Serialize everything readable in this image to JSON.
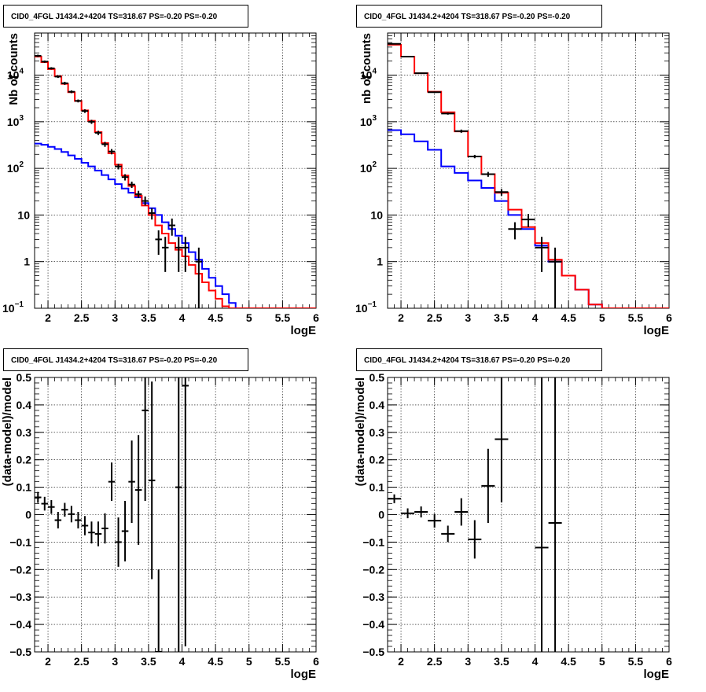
{
  "colors": {
    "data": "#000000",
    "total_model": "#ff0000",
    "background_model": "#0000ff",
    "grid": "#000000"
  },
  "chart_data": [
    {
      "panel": "top-left",
      "type": "line",
      "title": "CID0_4FGL J1434.2+4204 TS=318.67 PS=-0.20 PS=-0.20",
      "xlabel": "logE",
      "ylabel": "Nb of counts",
      "log_y": true,
      "grid": true,
      "xlim": [
        1.8,
        6.0
      ],
      "ylim": [
        0.1,
        80000
      ],
      "x_ticks": [
        "2",
        "2.5",
        "3",
        "3.5",
        "4",
        "4.5",
        "5",
        "5.5",
        "6"
      ],
      "y_ticks": [
        {
          "base": "10",
          "exp": "−1",
          "v": 0.1
        },
        {
          "base": "1",
          "exp": "",
          "v": 1
        },
        {
          "base": "10",
          "exp": "",
          "v": 10
        },
        {
          "base": "10",
          "exp": "2",
          "v": 100
        },
        {
          "base": "10",
          "exp": "3",
          "v": 1000
        },
        {
          "base": "10",
          "exp": "4",
          "v": 10000
        }
      ],
      "bin_edges": [
        1.8,
        1.9,
        2.0,
        2.1,
        2.2,
        2.3,
        2.4,
        2.5,
        2.6,
        2.7,
        2.8,
        2.9,
        3.0,
        3.1,
        3.2,
        3.3,
        3.4,
        3.5,
        3.6,
        3.7,
        3.8,
        3.9,
        4.0,
        4.1,
        4.2,
        4.3,
        4.4,
        4.5,
        4.6,
        4.7,
        4.8,
        4.9,
        5.0,
        5.1,
        5.2,
        5.3,
        5.4,
        5.5,
        5.6,
        5.7,
        5.8,
        5.9,
        6.0
      ],
      "series": [
        {
          "role": "total_model",
          "values": [
            25000,
            19000,
            13500,
            9500,
            6500,
            4300,
            2800,
            1750,
            1050,
            600,
            350,
            210,
            120,
            70,
            42,
            26,
            16,
            10,
            6,
            4,
            2.5,
            1.8,
            1.3,
            0.85,
            0.55,
            0.36,
            0.24,
            0.16,
            0.11,
            0.1,
            0.1,
            0.1,
            0.1,
            0.1,
            0.1,
            0.1,
            0.1,
            0.1,
            0.1,
            0.1,
            0.1,
            0.1
          ]
        },
        {
          "role": "background_model",
          "values": [
            340,
            320,
            290,
            260,
            225,
            190,
            160,
            132,
            110,
            90,
            72,
            58,
            46,
            37,
            30,
            24,
            18,
            14,
            10,
            7,
            5,
            3.6,
            2.5,
            1.6,
            1.1,
            0.7,
            0.45,
            0.3,
            0.2,
            0.13,
            0.1,
            0.1,
            0.1,
            0.1,
            0.1,
            0.1,
            0.1,
            0.1,
            0.1,
            0.1,
            0.1,
            0.1
          ]
        },
        {
          "role": "data",
          "points": [
            {
              "x": 1.85,
              "y": 26000,
              "lo": 24500,
              "hi": 27500
            },
            {
              "x": 1.95,
              "y": 19500,
              "lo": 18400,
              "hi": 20600
            },
            {
              "x": 2.05,
              "y": 14000,
              "lo": 13200,
              "hi": 14800
            },
            {
              "x": 2.15,
              "y": 9300,
              "lo": 8700,
              "hi": 9900
            },
            {
              "x": 2.25,
              "y": 6700,
              "lo": 6200,
              "hi": 7200
            },
            {
              "x": 2.35,
              "y": 4400,
              "lo": 4100,
              "hi": 4700
            },
            {
              "x": 2.45,
              "y": 2800,
              "lo": 2600,
              "hi": 3000
            },
            {
              "x": 2.55,
              "y": 1700,
              "lo": 1550,
              "hi": 1850
            },
            {
              "x": 2.65,
              "y": 1000,
              "lo": 900,
              "hi": 1100
            },
            {
              "x": 2.75,
              "y": 580,
              "lo": 520,
              "hi": 640
            },
            {
              "x": 2.85,
              "y": 330,
              "lo": 290,
              "hi": 370
            },
            {
              "x": 2.95,
              "y": 230,
              "lo": 200,
              "hi": 260
            },
            {
              "x": 3.05,
              "y": 110,
              "lo": 95,
              "hi": 125
            },
            {
              "x": 3.15,
              "y": 65,
              "lo": 55,
              "hi": 75
            },
            {
              "x": 3.25,
              "y": 45,
              "lo": 38,
              "hi": 52
            },
            {
              "x": 3.35,
              "y": 28,
              "lo": 23,
              "hi": 33
            },
            {
              "x": 3.45,
              "y": 20,
              "lo": 16,
              "hi": 25
            },
            {
              "x": 3.55,
              "y": 11,
              "lo": 8,
              "hi": 14
            },
            {
              "x": 3.65,
              "y": 3,
              "lo": 1.4,
              "hi": 4.7
            },
            {
              "x": 3.75,
              "y": 2,
              "lo": 0.6,
              "hi": 3.4
            },
            {
              "x": 3.85,
              "y": 6,
              "lo": 3.6,
              "hi": 8.4
            },
            {
              "x": 3.95,
              "y": 2,
              "lo": 0.6,
              "hi": 3.4
            },
            {
              "x": 4.05,
              "y": 2,
              "lo": 0.6,
              "hi": 3.4
            },
            {
              "x": 4.25,
              "y": 1,
              "lo": 0.1,
              "hi": 2
            }
          ]
        }
      ]
    },
    {
      "panel": "top-right",
      "type": "line",
      "title": "CID0_4FGL J1434.2+4204 TS=318.67 PS=-0.20 PS=-0.20",
      "xlabel": "logE",
      "ylabel": "nb of counts",
      "log_y": true,
      "grid": true,
      "xlim": [
        1.8,
        6.0
      ],
      "ylim": [
        0.1,
        80000
      ],
      "x_ticks": [
        "2",
        "2.5",
        "3",
        "3.5",
        "4",
        "4.5",
        "5",
        "5.5",
        "6"
      ],
      "y_ticks": [
        {
          "base": "10",
          "exp": "−1",
          "v": 0.1
        },
        {
          "base": "1",
          "exp": "",
          "v": 1
        },
        {
          "base": "10",
          "exp": "",
          "v": 10
        },
        {
          "base": "10",
          "exp": "2",
          "v": 100
        },
        {
          "base": "10",
          "exp": "3",
          "v": 1000
        },
        {
          "base": "10",
          "exp": "4",
          "v": 10000
        }
      ],
      "bin_edges": [
        1.8,
        2.0,
        2.2,
        2.4,
        2.6,
        2.8,
        3.0,
        3.2,
        3.4,
        3.6,
        3.8,
        4.0,
        4.2,
        4.4,
        4.6,
        4.8,
        5.0,
        5.2,
        5.4,
        5.6,
        5.8,
        6.0
      ],
      "series": [
        {
          "role": "total_model",
          "values": [
            45000,
            25000,
            11000,
            4400,
            1600,
            620,
            180,
            75,
            30,
            13,
            5.5,
            2.5,
            1.1,
            0.5,
            0.25,
            0.12,
            0.1,
            0.1,
            0.1,
            0.1,
            0.1
          ]
        },
        {
          "role": "background_model",
          "values": [
            660,
            540,
            380,
            250,
            110,
            80,
            55,
            38,
            20,
            10,
            5,
            2.2,
            1.0,
            0.5,
            0.25,
            0.12,
            0.1,
            0.1,
            0.1,
            0.1,
            0.1
          ]
        },
        {
          "role": "data",
          "points": [
            {
              "x": 1.9,
              "y": 47000,
              "lo": 46000,
              "hi": 48000
            },
            {
              "x": 2.1,
              "y": 25000,
              "lo": 24600,
              "hi": 25400
            },
            {
              "x": 2.3,
              "y": 11000,
              "lo": 10700,
              "hi": 11300
            },
            {
              "x": 2.5,
              "y": 4300,
              "lo": 4150,
              "hi": 4450
            },
            {
              "x": 2.7,
              "y": 1500,
              "lo": 1420,
              "hi": 1580
            },
            {
              "x": 2.9,
              "y": 630,
              "lo": 580,
              "hi": 680
            },
            {
              "x": 3.1,
              "y": 180,
              "lo": 165,
              "hi": 195
            },
            {
              "x": 3.3,
              "y": 75,
              "lo": 66,
              "hi": 84
            },
            {
              "x": 3.5,
              "y": 31,
              "lo": 26,
              "hi": 36
            },
            {
              "x": 3.7,
              "y": 5,
              "lo": 3,
              "hi": 7
            },
            {
              "x": 3.9,
              "y": 8,
              "lo": 5.5,
              "hi": 10.5
            },
            {
              "x": 4.1,
              "y": 2,
              "lo": 0.6,
              "hi": 3.4
            },
            {
              "x": 4.3,
              "y": 1,
              "lo": 0.1,
              "hi": 2
            }
          ]
        }
      ]
    },
    {
      "panel": "bottom-left",
      "type": "scatter",
      "title": "CID0_4FGL J1434.2+4204 TS=318.67 PS=-0.20 PS=-0.20",
      "xlabel": "logE",
      "ylabel": "(data-model)/model",
      "log_y": false,
      "grid": true,
      "xlim": [
        1.8,
        6.0
      ],
      "ylim": [
        -0.5,
        0.5
      ],
      "x_ticks": [
        "2",
        "2.5",
        "3",
        "3.5",
        "4",
        "4.5",
        "5",
        "5.5",
        "6"
      ],
      "y_ticks": [
        "−0.5",
        "−0.4",
        "−0.3",
        "−0.2",
        "−0.1",
        "0",
        "0.1",
        "0.2",
        "0.3",
        "0.4",
        "0.5"
      ],
      "half_width": 0.05,
      "points": [
        {
          "x": 1.85,
          "y": 0.063,
          "err": 0.02
        },
        {
          "x": 1.95,
          "y": 0.04,
          "err": 0.025
        },
        {
          "x": 2.05,
          "y": 0.028,
          "err": 0.025
        },
        {
          "x": 2.15,
          "y": -0.02,
          "err": 0.03
        },
        {
          "x": 2.25,
          "y": 0.018,
          "err": 0.025
        },
        {
          "x": 2.35,
          "y": 0.002,
          "err": 0.03
        },
        {
          "x": 2.45,
          "y": -0.02,
          "err": 0.03
        },
        {
          "x": 2.55,
          "y": -0.04,
          "err": 0.035
        },
        {
          "x": 2.65,
          "y": -0.065,
          "err": 0.04
        },
        {
          "x": 2.75,
          "y": -0.07,
          "err": 0.045
        },
        {
          "x": 2.85,
          "y": -0.05,
          "err": 0.055
        },
        {
          "x": 2.95,
          "y": 0.12,
          "err": 0.07
        },
        {
          "x": 3.05,
          "y": -0.1,
          "err": 0.09
        },
        {
          "x": 3.15,
          "y": -0.06,
          "err": 0.11
        },
        {
          "x": 3.25,
          "y": 0.12,
          "err": 0.15
        },
        {
          "x": 3.35,
          "y": 0.09,
          "err": 0.2
        },
        {
          "x": 3.45,
          "y": 0.38,
          "err": 0.33
        },
        {
          "x": 3.55,
          "y": 0.125,
          "err": 0.36
        },
        {
          "x": 3.65,
          "y": -0.5,
          "err": 0.3
        },
        {
          "x": 3.95,
          "y": 0.1,
          "err": 0.8
        },
        {
          "x": 4.05,
          "y": 0.47,
          "err": 0.95
        }
      ]
    },
    {
      "panel": "bottom-right",
      "type": "scatter",
      "title": "CID0_4FGL J1434.2+4204 TS=318.67 PS=-0.20 PS=-0.20",
      "xlabel": "logE",
      "ylabel": "(data-model)/model",
      "log_y": false,
      "grid": true,
      "xlim": [
        1.8,
        6.0
      ],
      "ylim": [
        -0.5,
        0.5
      ],
      "x_ticks": [
        "2",
        "2.5",
        "3",
        "3.5",
        "4",
        "4.5",
        "5",
        "5.5",
        "6"
      ],
      "y_ticks": [
        "−0.5",
        "−0.4",
        "−0.3",
        "−0.2",
        "−0.1",
        "0",
        "0.1",
        "0.2",
        "0.3",
        "0.4",
        "0.5"
      ],
      "half_width": 0.1,
      "points": [
        {
          "x": 1.9,
          "y": 0.058,
          "err": 0.016
        },
        {
          "x": 2.1,
          "y": 0.005,
          "err": 0.018
        },
        {
          "x": 2.3,
          "y": 0.01,
          "err": 0.02
        },
        {
          "x": 2.5,
          "y": -0.022,
          "err": 0.025
        },
        {
          "x": 2.7,
          "y": -0.07,
          "err": 0.03
        },
        {
          "x": 2.9,
          "y": 0.01,
          "err": 0.05
        },
        {
          "x": 3.1,
          "y": -0.09,
          "err": 0.07
        },
        {
          "x": 3.3,
          "y": 0.105,
          "err": 0.135
        },
        {
          "x": 3.5,
          "y": 0.275,
          "err": 0.23
        },
        {
          "x": 4.1,
          "y": -0.12,
          "err": 0.8
        },
        {
          "x": 4.3,
          "y": -0.03,
          "err": 0.8
        }
      ]
    }
  ]
}
